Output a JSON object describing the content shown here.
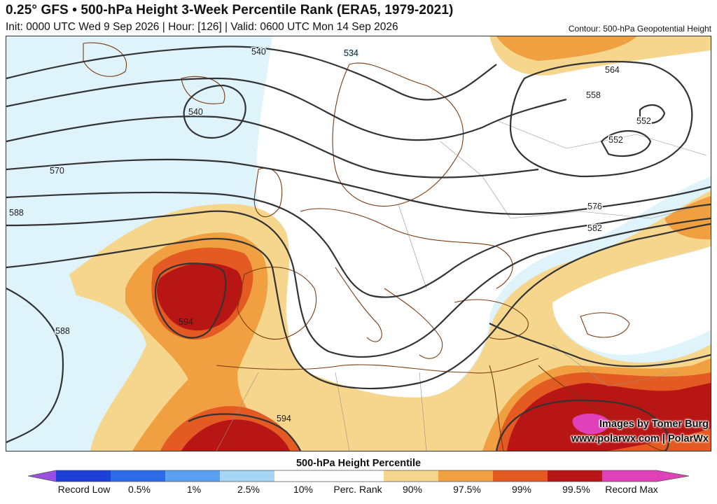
{
  "header": {
    "title": "0.25° GFS • 500-hPa Height 3-Week Percentile Rank (ERA5, 1979-2021)",
    "subtitle": "Init: 0000 UTC Wed 9 Sep 2026 | Hour: [126] | Valid: 0600 UTC Mon 14 Sep 2026",
    "contour_note": "Contour: 500-hPa Geopotential Height"
  },
  "map": {
    "contour_labels": [
      "540",
      "534",
      "540",
      "564",
      "558",
      "552",
      "552",
      "570",
      "588",
      "576",
      "582",
      "588",
      "594",
      "594"
    ]
  },
  "credits": {
    "line1": "Images by Tomer Burg",
    "line2": "www.polarwx.com | PolarWx"
  },
  "colorbar": {
    "title": "500-hPa Height Percentile",
    "labels": [
      "Record Low",
      "0.5%",
      "1%",
      "2.5%",
      "10%",
      "Perc. Rank",
      "90%",
      "97.5%",
      "99%",
      "99.5%",
      "Record Max"
    ],
    "colors": {
      "record_low": "#9a4fe0",
      "p0_5": "#1b3fd8",
      "p1": "#2c6be8",
      "p2_5": "#5aa0f0",
      "p10": "#a6d6f6",
      "neutral": "#ffffff",
      "p90": "#f6d58c",
      "p97_5": "#f0a040",
      "p99": "#e35a22",
      "p99_5": "#b81515",
      "record_max": "#e040b8"
    }
  }
}
